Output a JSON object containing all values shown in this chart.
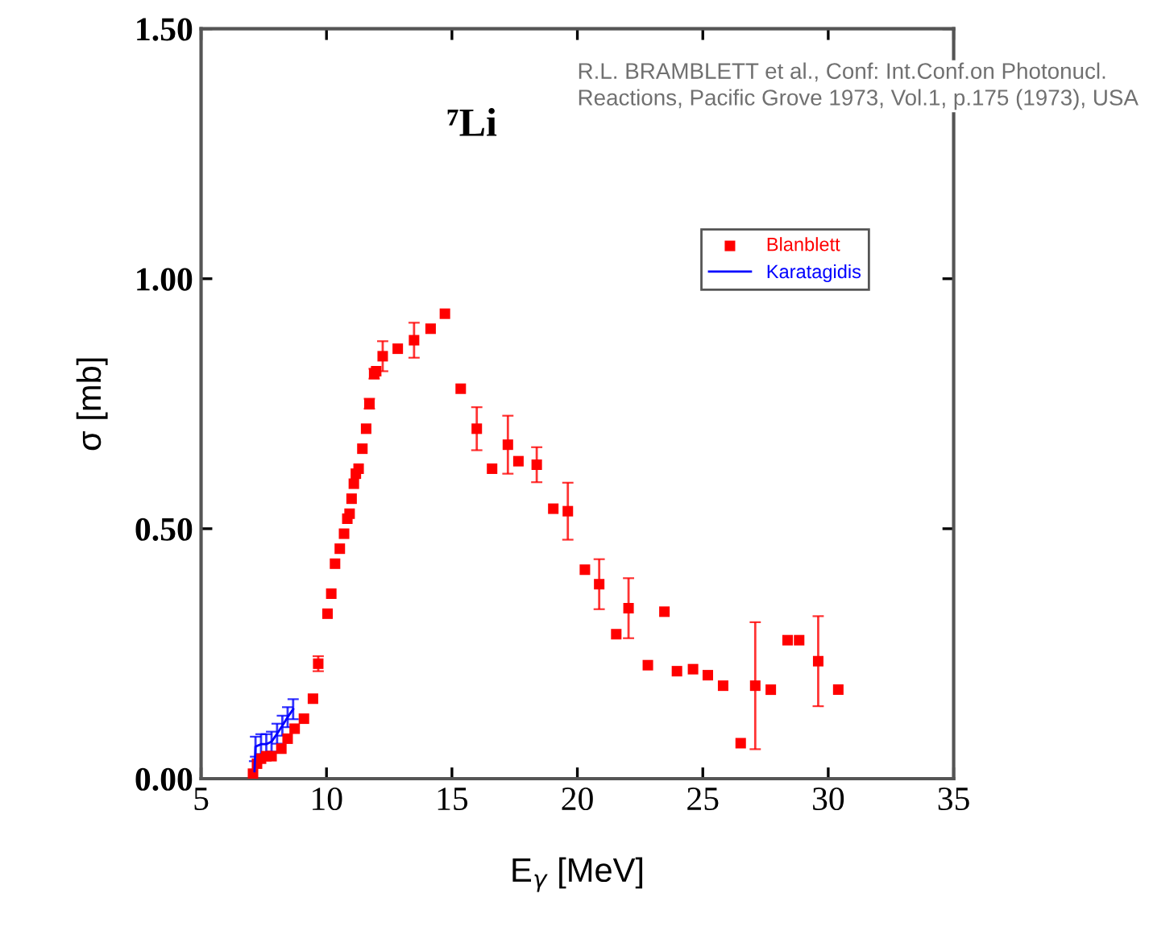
{
  "chart_data": {
    "type": "scatter",
    "title": "⁷Li",
    "xlabel": "E$_{γ}$ [MeV]",
    "ylabel": "σ [mb]",
    "annotations": [
      "R.L. BRAMBLETT et al., Conf: Int.Conf.on Photonucl. Reactions, Pacific Grove 1973, Vol.1, p.175 (1973), USA"
    ],
    "xlim": [
      5,
      35
    ],
    "xticks": [
      5,
      10,
      15,
      20,
      25,
      30,
      35
    ],
    "ylim": [
      0,
      1.5
    ],
    "yticks": [
      {
        "value": 0,
        "label": "0.00"
      },
      {
        "value": 0.5,
        "label": "0.50"
      },
      {
        "value": 1.0,
        "label": "1.00"
      },
      {
        "value": 1.5,
        "label": "1.50"
      }
    ],
    "grid": false,
    "legend": "top right",
    "series": [
      {
        "name": "Blanblett",
        "color": "#ff0000",
        "marker": "square",
        "x": [
          7.07,
          7.23,
          7.39,
          7.6,
          7.81,
          8.2,
          8.45,
          8.73,
          9.1,
          9.46,
          9.67,
          10.04,
          10.19,
          10.34,
          10.53,
          10.7,
          10.83,
          10.92,
          11.0,
          11.09,
          11.17,
          11.28,
          11.43,
          11.58,
          11.71,
          11.9,
          11.98,
          12.24,
          12.84,
          13.49,
          14.15,
          14.72,
          15.35,
          15.99,
          16.6,
          17.23,
          17.65,
          18.38,
          19.04,
          19.62,
          20.3,
          20.87,
          21.55,
          22.04,
          22.81,
          23.47,
          23.97,
          24.61,
          25.2,
          25.81,
          26.51,
          27.09,
          27.71,
          28.38,
          28.84,
          29.6,
          30.4
        ],
        "values": [
          0.01,
          0.03,
          0.04,
          0.045,
          0.045,
          0.06,
          0.08,
          0.1,
          0.12,
          0.16,
          0.23,
          0.33,
          0.37,
          0.43,
          0.46,
          0.49,
          0.52,
          0.53,
          0.56,
          0.59,
          0.61,
          0.62,
          0.66,
          0.7,
          0.75,
          0.81,
          0.815,
          0.845,
          0.86,
          0.877,
          0.9,
          0.93,
          0.78,
          0.7,
          0.62,
          0.668,
          0.635,
          0.628,
          0.54,
          0.535,
          0.418,
          0.389,
          0.289,
          0.341,
          0.227,
          0.334,
          0.215,
          0.219,
          0.207,
          0.186,
          0.071,
          0.186,
          0.178,
          0.277,
          0.277,
          0.235,
          0.178
        ],
        "errors": [
          null,
          null,
          null,
          null,
          null,
          null,
          null,
          null,
          null,
          null,
          0.015,
          null,
          null,
          null,
          null,
          null,
          null,
          null,
          null,
          null,
          null,
          null,
          null,
          null,
          0.01,
          0.01,
          null,
          0.03,
          null,
          0.035,
          null,
          null,
          null,
          0.043,
          null,
          0.058,
          null,
          0.035,
          null,
          0.057,
          null,
          0.05,
          null,
          0.06,
          null,
          null,
          null,
          null,
          null,
          null,
          null,
          0.127,
          null,
          null,
          null,
          0.09,
          null
        ]
      },
      {
        "name": "Karatagidis",
        "color": "#0000ff",
        "type": "line",
        "marker": "none",
        "line_style": "solid",
        "x": [
          7.13,
          7.17,
          7.39,
          7.6,
          7.81,
          8.03,
          8.24,
          8.45,
          8.67
        ],
        "values": [
          0.015,
          0.064,
          0.069,
          0.069,
          0.074,
          0.09,
          0.106,
          0.123,
          0.139
        ],
        "errors": [
          0.02,
          0.02,
          0.02,
          0.02,
          0.02,
          0.02,
          0.02,
          0.02,
          0.02
        ]
      }
    ]
  }
}
